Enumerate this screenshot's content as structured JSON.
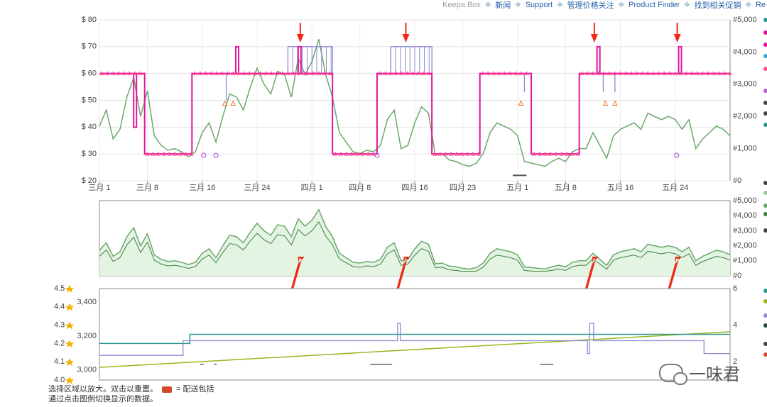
{
  "topnav": {
    "brand": "Keepa Box",
    "links": [
      "新闻",
      "Support",
      "管理价格关注",
      "Product Finder",
      "找到相关促销",
      "Re"
    ]
  },
  "colors": {
    "buybox": "#e2149e",
    "amazon_offer": "#ff4f86",
    "new_offer": "#8a8ad8",
    "sales_rank": "#6aa86a",
    "sales_rank_fill": "#e3f4e3",
    "rating": "#96b81c",
    "review_count_line": "#2a9a90",
    "arrow": "#f02a17",
    "deal_marker": "#ff7030",
    "coupon_marker": "#b060d8",
    "nav_link": "#1f5fa8"
  },
  "chart_data": [
    {
      "type": "line",
      "panel": "price",
      "x_tick_labels": [
        "三月 1",
        "三月 8",
        "三月 16",
        "三月 24",
        "四月 1",
        "四月 8",
        "四月 16",
        "四月 23",
        "五月 1",
        "五月 8",
        "五月 16",
        "五月 24"
      ],
      "x_tick_days": [
        0,
        7,
        15,
        23,
        31,
        38,
        46,
        53,
        61,
        68,
        76,
        84
      ],
      "x_range_days": [
        0,
        92
      ],
      "y_left_ticks": [
        "$ 20",
        "$ 30",
        "$ 40",
        "$ 50",
        "$ 60",
        "$ 70",
        "$ 80"
      ],
      "ylim_left": [
        20,
        80
      ],
      "y_right_ticks": [
        "#0",
        "#1,000",
        "#2,000",
        "#3,000",
        "#4,000",
        "#5,000"
      ],
      "ylim_right": [
        0,
        5000
      ],
      "grid": true,
      "series": [
        {
          "role": "buybox_price",
          "x": [
            0,
            6.6,
            6.6,
            13.5,
            13.5,
            30,
            30,
            34,
            34,
            40.5,
            40.5,
            48.5,
            48.5,
            55.5,
            55.5,
            63,
            63,
            70,
            70,
            92
          ],
          "y": [
            60,
            60,
            30,
            30,
            60,
            60,
            60,
            60,
            30,
            30,
            60,
            60,
            30,
            30,
            60,
            60,
            30,
            30,
            60,
            60
          ],
          "spikes": [
            {
              "x": 5.2,
              "y": 40
            },
            {
              "x": 20.1,
              "y": 70
            },
            {
              "x": 29.2,
              "y": 70
            },
            {
              "x": 72.8,
              "y": 70
            },
            {
              "x": 84.7,
              "y": 70
            }
          ]
        },
        {
          "role": "new_offer_price",
          "segments": [
            [
              0,
              6.6,
              60
            ],
            [
              6.6,
              13.5,
              30
            ],
            [
              13.5,
              27.5,
              60
            ],
            [
              27.5,
              34,
              70
            ],
            [
              34,
              40.5,
              30
            ],
            [
              40.5,
              42.5,
              60
            ],
            [
              42.5,
              48.5,
              70
            ],
            [
              48.5,
              55.5,
              30
            ],
            [
              55.5,
              63,
              60
            ],
            [
              63,
              70,
              30
            ],
            [
              70,
              92,
              60
            ]
          ],
          "dips": [
            {
              "x": 18.5,
              "y": 50
            },
            {
              "x": 62,
              "y": 53
            },
            {
              "x": 73.5,
              "y": 53
            },
            {
              "x": 75.2,
              "y": 53
            }
          ]
        },
        {
          "role": "sales_rank",
          "x": [
            0,
            1,
            2,
            3,
            4,
            5,
            6,
            7,
            8,
            9,
            10,
            11,
            12,
            13,
            14,
            15,
            16,
            17,
            18,
            19,
            20,
            21,
            22,
            23,
            24,
            25,
            26,
            27,
            28,
            29,
            30,
            31,
            32,
            33,
            34,
            35,
            36,
            37,
            38,
            39,
            40,
            41,
            42,
            43,
            44,
            45,
            46,
            47,
            48,
            49,
            50,
            51,
            52,
            53,
            54,
            55,
            56,
            57,
            58,
            59,
            60,
            61,
            62,
            63,
            64,
            65,
            66,
            67,
            68,
            69,
            70,
            71,
            72,
            73,
            74,
            75,
            76,
            77,
            78,
            79,
            80,
            81,
            82,
            83,
            84,
            85,
            86,
            87,
            88,
            89,
            90,
            91,
            92
          ],
          "y": [
            1700,
            2200,
            1300,
            1600,
            2600,
            3200,
            2000,
            2800,
            1400,
            1100,
            950,
            1000,
            900,
            750,
            900,
            1500,
            1800,
            1200,
            2000,
            2700,
            2600,
            2200,
            2900,
            3500,
            3000,
            2700,
            3400,
            3300,
            2600,
            3800,
            3300,
            3700,
            4400,
            3300,
            2600,
            1500,
            1200,
            900,
            850,
            950,
            900,
            1100,
            1900,
            2200,
            1000,
            1100,
            1800,
            2300,
            2100,
            800,
            850,
            650,
            600,
            500,
            450,
            550,
            850,
            1500,
            1800,
            1700,
            1600,
            1400,
            600,
            550,
            500,
            450,
            600,
            700,
            600,
            900,
            1000,
            1000,
            1500,
            1100,
            700,
            1400,
            1600,
            1700,
            1800,
            1600,
            2100,
            2000,
            1900,
            2000,
            1900,
            1600,
            1900,
            1000,
            1300,
            1500,
            1700,
            1600,
            1400
          ]
        }
      ],
      "annotations": {
        "arrows_down_at_days": [
          29.3,
          44.7,
          72.2,
          84.3
        ],
        "deal_markers_x_days": [
          18.3,
          19.5,
          61.5,
          73.8,
          75.2
        ],
        "coupon_markers_x_days": [
          15.2,
          17,
          40.5,
          84.2
        ]
      }
    },
    {
      "type": "area",
      "panel": "sales_rank",
      "x_range_days": [
        0,
        92
      ],
      "y_right_ticks": [
        "#0",
        "#1,000",
        "#2,000",
        "#3,000",
        "#4,000",
        "#5,000"
      ],
      "ylim": [
        0,
        5000
      ],
      "series": [
        {
          "role": "sales_rank",
          "x": [
            0,
            1,
            2,
            3,
            4,
            5,
            6,
            7,
            8,
            9,
            10,
            11,
            12,
            13,
            14,
            15,
            16,
            17,
            18,
            19,
            20,
            21,
            22,
            23,
            24,
            25,
            26,
            27,
            28,
            29,
            30,
            31,
            32,
            33,
            34,
            35,
            36,
            37,
            38,
            39,
            40,
            41,
            42,
            43,
            44,
            45,
            46,
            47,
            48,
            49,
            50,
            51,
            52,
            53,
            54,
            55,
            56,
            57,
            58,
            59,
            60,
            61,
            62,
            63,
            64,
            65,
            66,
            67,
            68,
            69,
            70,
            71,
            72,
            73,
            74,
            75,
            76,
            77,
            78,
            79,
            80,
            81,
            82,
            83,
            84,
            85,
            86,
            87,
            88,
            89,
            90,
            91,
            92
          ],
          "y": [
            1700,
            2200,
            1300,
            1600,
            2600,
            3200,
            2000,
            2800,
            1400,
            1100,
            950,
            1000,
            900,
            750,
            900,
            1500,
            1800,
            1200,
            2000,
            2700,
            2600,
            2200,
            2900,
            3500,
            3000,
            2700,
            3400,
            3300,
            2600,
            3800,
            3300,
            3700,
            4400,
            3300,
            2600,
            1500,
            1200,
            900,
            850,
            950,
            900,
            1100,
            1900,
            2200,
            1000,
            1100,
            1800,
            2300,
            2100,
            800,
            850,
            650,
            600,
            500,
            450,
            550,
            850,
            1500,
            1800,
            1700,
            1600,
            1400,
            600,
            550,
            500,
            450,
            600,
            700,
            600,
            900,
            1000,
            1000,
            1500,
            1100,
            700,
            1400,
            1600,
            1700,
            1800,
            1600,
            2100,
            2000,
            1900,
            2000,
            1900,
            1600,
            1900,
            1000,
            1300,
            1500,
            1700,
            1600,
            1400
          ]
        }
      ],
      "annotations": {
        "arrows_up_at_days": [
          29.3,
          44.7,
          72.2,
          84.3
        ]
      }
    },
    {
      "type": "line",
      "panel": "rating_reviews",
      "x_range_days": [
        0,
        92
      ],
      "y_rating_ticks": [
        "4.0",
        "4.1",
        "4.2",
        "4.3",
        "4.4",
        "4.5"
      ],
      "ylim_rating": [
        4.0,
        4.5
      ],
      "y_count_ticks": [
        "3,000",
        "3,200",
        "3,400"
      ],
      "ylim_count": [
        2940,
        3480
      ],
      "y_right_ticks": [
        "2",
        "4",
        "6"
      ],
      "ylim_right": [
        1,
        6
      ],
      "series": [
        {
          "role": "review_count",
          "x": [
            0,
            92
          ],
          "y": [
            3015,
            3225
          ]
        },
        {
          "role": "rating",
          "x": [
            0,
            13.2,
            13.2,
            92
          ],
          "y": [
            4.2,
            4.2,
            4.25,
            4.25
          ]
        },
        {
          "role": "count_step",
          "x": [
            0,
            12.2,
            12.2,
            15.8,
            15.8,
            43.5,
            43.5,
            43.9,
            43.9,
            71.2,
            71.2,
            71.5,
            71.5,
            72.1,
            72.1,
            88.2,
            88.2,
            92
          ],
          "y": [
            2.35,
            2.35,
            3.15,
            3.15,
            3.15,
            3.15,
            4.1,
            4.1,
            3.15,
            3.15,
            2.45,
            2.45,
            4.1,
            4.1,
            3.15,
            3.15,
            2.45,
            2.45
          ]
        }
      ],
      "annotations": {
        "gap_segments_days": [
          [
            14.7,
            15.2
          ],
          [
            16.7,
            17.1
          ],
          [
            39.5,
            42.7
          ],
          [
            64.3,
            66.2
          ]
        ]
      }
    }
  ],
  "help": {
    "line1": "选择区域以放大。双击以重置。",
    "legend_label": "= 配送包括",
    "line2": "通过点击图例切换显示的数据。"
  },
  "watermark": {
    "text": "一味君"
  }
}
